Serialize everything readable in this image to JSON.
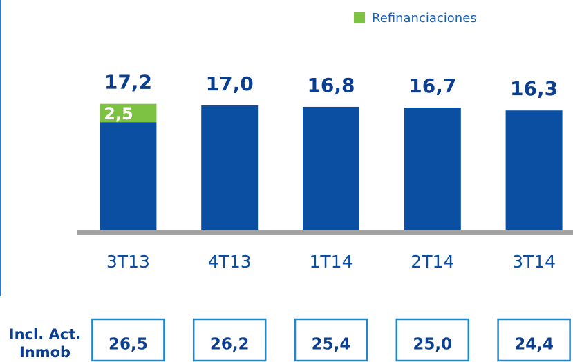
{
  "chart_data": {
    "type": "stacked_bar",
    "categories": [
      "3T13",
      "4T13",
      "1T14",
      "2T14",
      "3T14"
    ],
    "series": [
      {
        "color": "#0b4fa3",
        "values": [
          14.7,
          17.0,
          16.8,
          16.7,
          16.3
        ]
      },
      {
        "name": "Refinanciaciones",
        "color": "#7dc242",
        "values": [
          2.5,
          null,
          null,
          null,
          null
        ],
        "value_labels": [
          "2,5",
          null,
          null,
          null,
          null
        ]
      }
    ],
    "totals": [
      17.2,
      17.0,
      16.8,
      16.7,
      16.3
    ],
    "total_labels": [
      "17,2",
      "17,0",
      "16,8",
      "16,7",
      "16,3"
    ],
    "ylim": [
      0,
      20
    ],
    "legend": "top-right",
    "bottom_row": {
      "label_lines": [
        "Incl. Act.",
        "Inmob"
      ],
      "values": [
        26.5,
        26.2,
        25.4,
        25.0,
        24.4
      ],
      "value_labels": [
        "26,5",
        "26,2",
        "25,4",
        "25,0",
        "24,4"
      ]
    }
  }
}
